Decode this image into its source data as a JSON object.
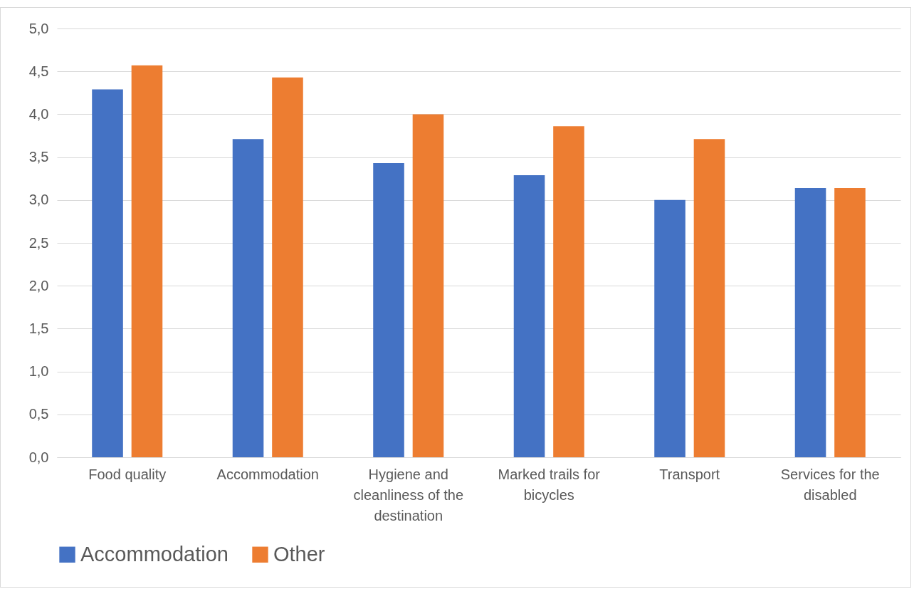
{
  "chart_data": {
    "type": "bar",
    "categories": [
      "Food quality",
      "Accommodation",
      "Hygiene and cleanliness of the destination",
      "Marked trails for bicycles",
      "Transport",
      "Services for the disabled"
    ],
    "series": [
      {
        "name": "Accommodation",
        "color": "#4472c4",
        "values": [
          4.29,
          3.71,
          3.43,
          3.29,
          3.0,
          3.14
        ]
      },
      {
        "name": "Other",
        "color": "#ed7d31",
        "values": [
          4.57,
          4.43,
          4.0,
          3.86,
          3.71,
          3.14
        ]
      }
    ],
    "ylim": [
      0,
      5
    ],
    "yticks": [
      {
        "value": 0,
        "label": "0,0"
      },
      {
        "value": 0.5,
        "label": "0,5"
      },
      {
        "value": 1,
        "label": "1,0"
      },
      {
        "value": 1.5,
        "label": "1,5"
      },
      {
        "value": 2,
        "label": "2,0"
      },
      {
        "value": 2.5,
        "label": "2,5"
      },
      {
        "value": 3,
        "label": "3,0"
      },
      {
        "value": 3.5,
        "label": "3,5"
      },
      {
        "value": 4,
        "label": "4,0"
      },
      {
        "value": 4.5,
        "label": "4,5"
      },
      {
        "value": 5,
        "label": "5,0"
      }
    ],
    "grid": "y",
    "legend": "bottom"
  }
}
